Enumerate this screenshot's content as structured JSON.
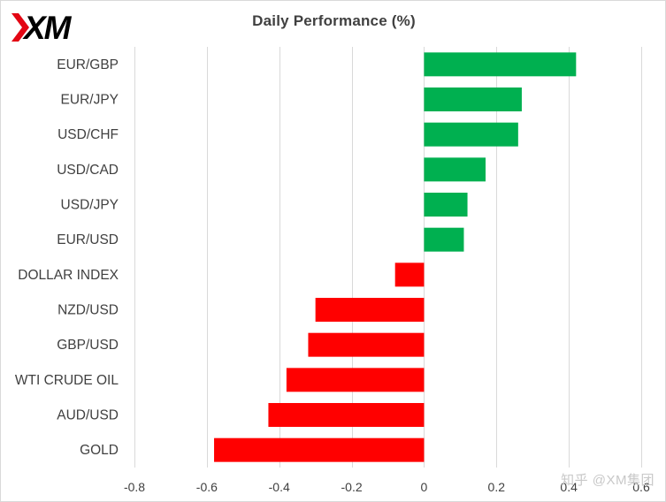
{
  "logo": {
    "text": "XM",
    "color": "#000000",
    "accent": "#e30613"
  },
  "chart_data": {
    "type": "bar",
    "orientation": "horizontal",
    "title": "Daily Performance (%)",
    "xlabel": "",
    "ylabel": "",
    "xlim": [
      -0.8,
      0.6
    ],
    "xticks": [
      -0.8,
      -0.6,
      -0.4,
      -0.2,
      0,
      0.2,
      0.4,
      0.6
    ],
    "xtick_labels": [
      "-0.8",
      "-0.6",
      "-0.4",
      "-0.2",
      "0",
      "0.2",
      "0.4",
      "0.6"
    ],
    "grid": true,
    "categories": [
      "EUR/GBP",
      "EUR/JPY",
      "USD/CHF",
      "USD/CAD",
      "USD/JPY",
      "EUR/USD",
      "DOLLAR INDEX",
      "NZD/USD",
      "GBP/USD",
      "WTI CRUDE OIL",
      "AUD/USD",
      "GOLD"
    ],
    "values": [
      0.42,
      0.27,
      0.26,
      0.17,
      0.12,
      0.11,
      -0.08,
      -0.3,
      -0.32,
      -0.38,
      -0.43,
      -0.58
    ],
    "colors": {
      "positive": "#00b050",
      "negative": "#ff0000",
      "grid": "#d9d9d9",
      "text": "#404040"
    }
  },
  "watermark": {
    "text": "知乎 @XM集团"
  }
}
